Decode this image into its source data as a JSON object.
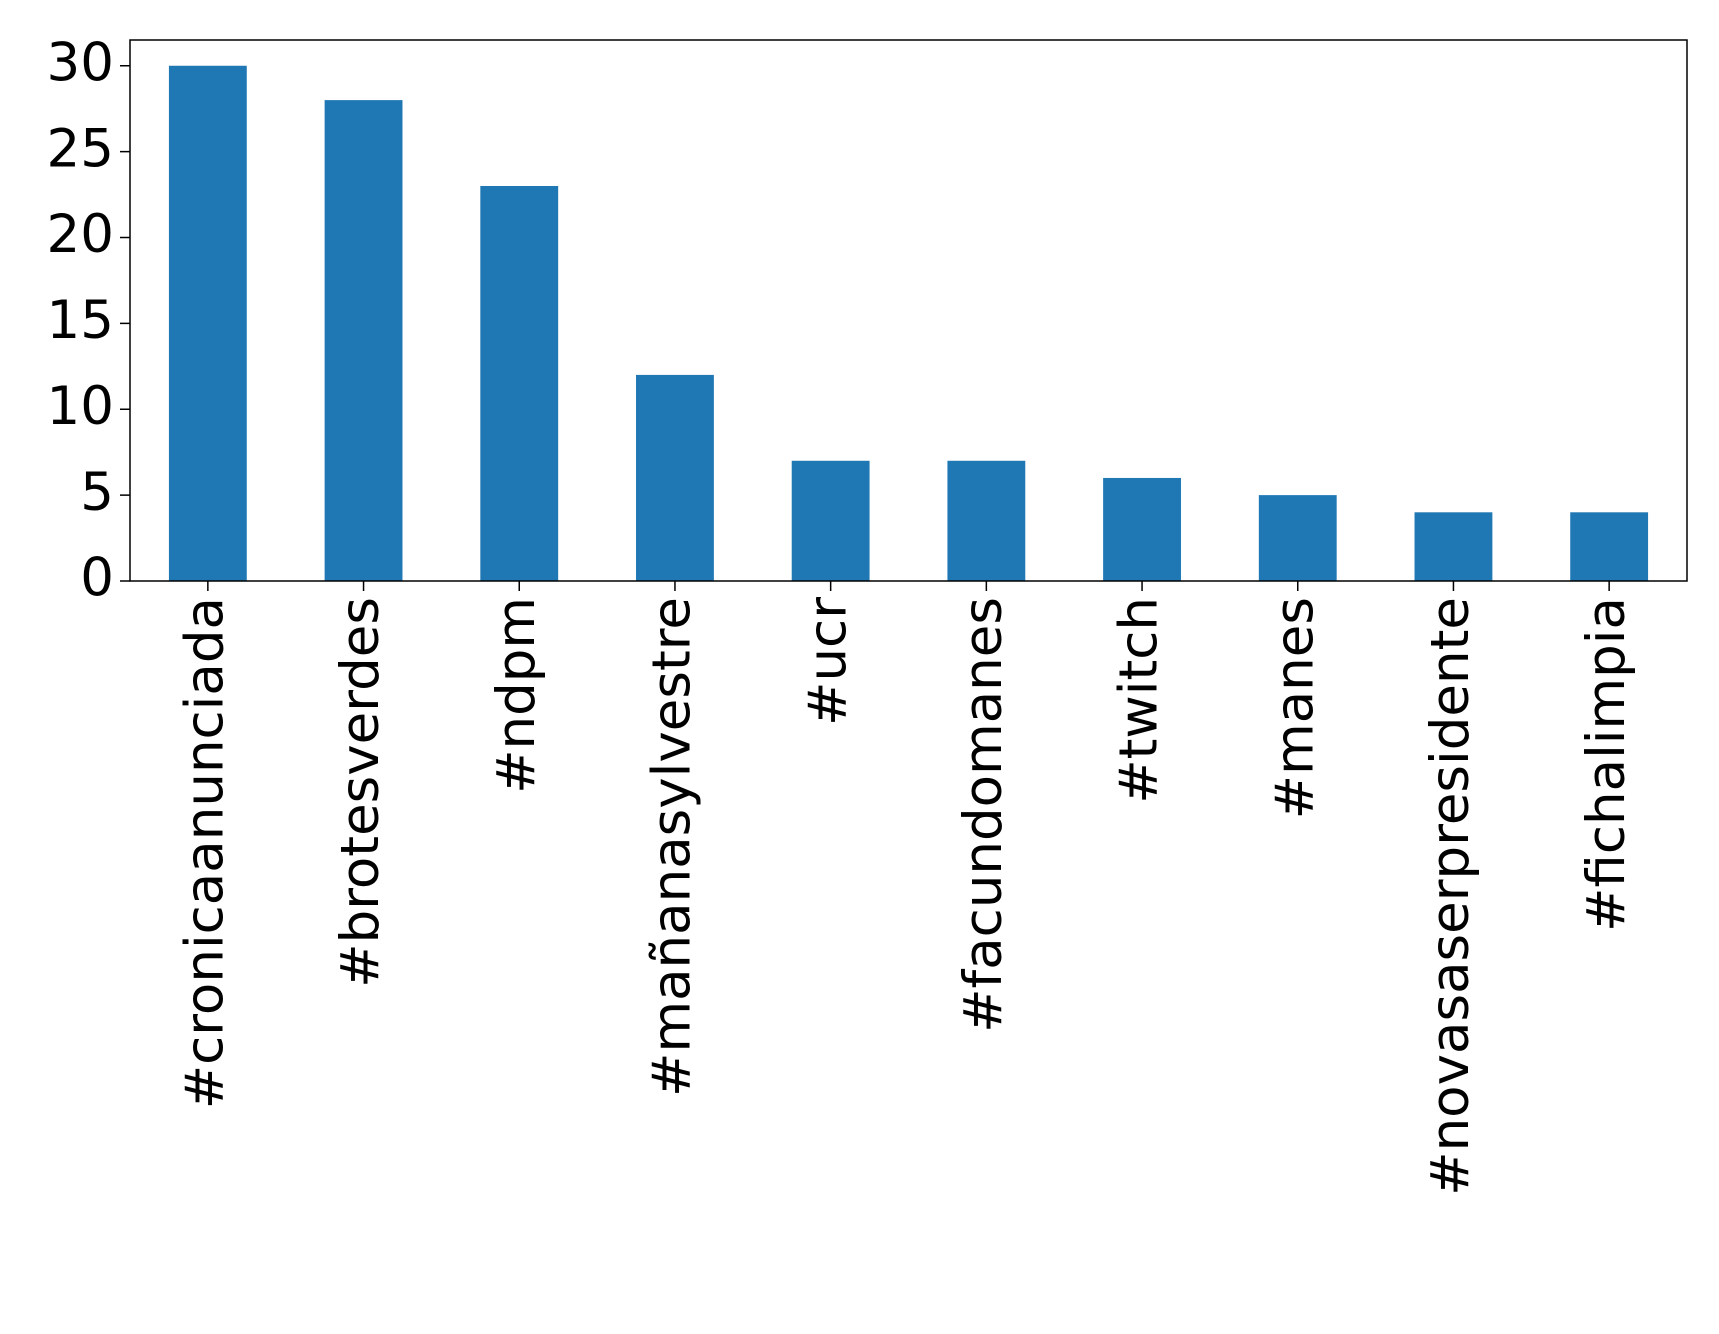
{
  "chart_data": {
    "type": "bar",
    "categories": [
      "#cronicaanunciada",
      "#brotesverdes",
      "#ndpm",
      "#mañanasylvestre",
      "#ucr",
      "#facundomanes",
      "#twitch",
      "#manes",
      "#novasaserpresidente",
      "#fichalimpia"
    ],
    "values": [
      30,
      28,
      23,
      12,
      7,
      7,
      6,
      5,
      4,
      4
    ],
    "color": "#1f77b4",
    "ylim": [
      0,
      31.5
    ],
    "yticks": [
      0,
      5,
      10,
      15,
      20,
      25,
      30
    ],
    "grid": false
  }
}
